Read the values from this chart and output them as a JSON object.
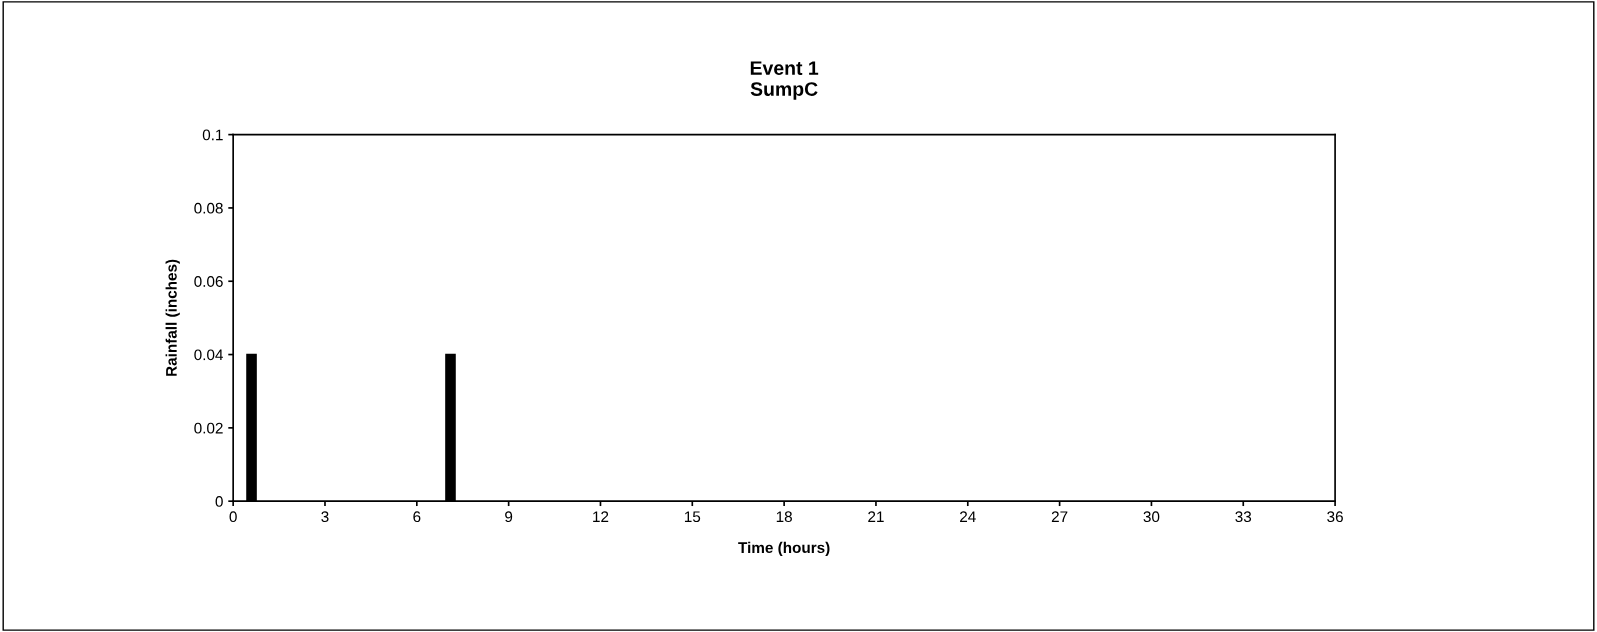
{
  "chart_data": {
    "type": "bar",
    "title": "Event 1\nSumpC",
    "xlabel": "Time (hours)",
    "ylabel": "Rainfall (inches)",
    "x": [
      0.6,
      7.1
    ],
    "values": [
      0.04,
      0.04
    ],
    "color": "#000000",
    "xlim": [
      0,
      36
    ],
    "xticks": [
      0,
      3,
      6,
      9,
      12,
      15,
      18,
      21,
      24,
      27,
      30,
      33,
      36
    ],
    "ylim": [
      0,
      0.1
    ],
    "yticks": [
      0,
      0.02,
      0.04,
      0.06,
      0.08,
      0.1
    ],
    "grid": false,
    "legend": false
  }
}
